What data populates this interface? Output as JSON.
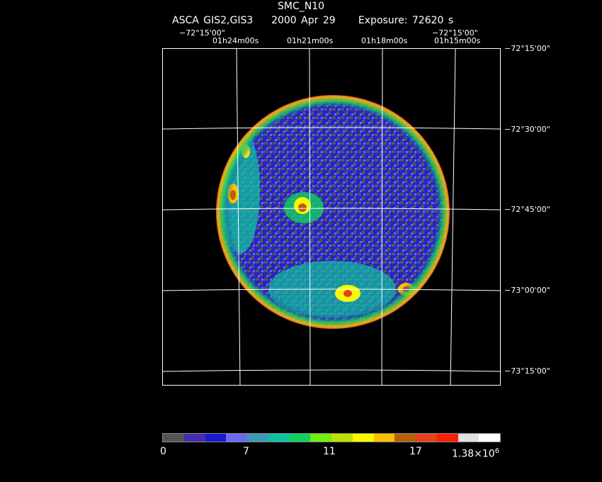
{
  "header": {
    "title": "SMC_N10",
    "instrument": "ASCA GIS2,GIS3",
    "date": "2000 Apr 29",
    "exposure": "Exposure: 72620 s"
  },
  "axes": {
    "top_left_dec": "−72°15'00\"",
    "top_right_dec": "−72°15'00\"",
    "ra_ticks": [
      "01h24m00s",
      "01h21m00s",
      "01h18m00s",
      "01h15m00s"
    ],
    "dec_ticks": [
      "−72°15'00\"",
      "−72°30'00\"",
      "−72°45'00\"",
      "−73°00'00\"",
      "−73°15'00\""
    ]
  },
  "colorbar": {
    "colors": [
      "#555555",
      "#4b2bb0",
      "#1a1ad0",
      "#6a6af0",
      "#3a9ab8",
      "#10c0a0",
      "#10d060",
      "#70f010",
      "#c0e000",
      "#f8f800",
      "#f8c000",
      "#b86008",
      "#e84020",
      "#f82000",
      "#e0e0e0",
      "#ffffff"
    ],
    "labels": [
      "0",
      "7",
      "11",
      "17"
    ],
    "max_label_base": "1.38×10",
    "max_label_exp": "6"
  }
}
